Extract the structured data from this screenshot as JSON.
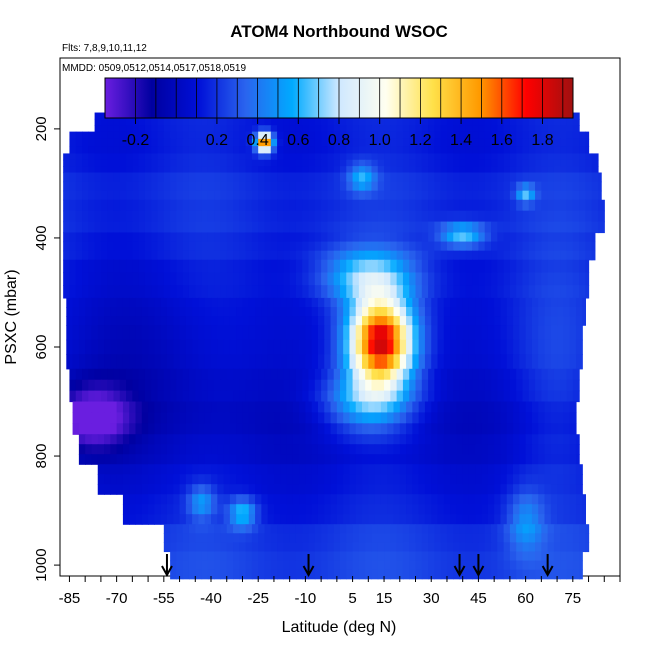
{
  "chart_data": {
    "type": "heatmap",
    "title": "ATOM4 Northbound WSOC",
    "annotations": {
      "flights": "Flts: 7,8,9,10,11,12",
      "dates": "MMDD: 0509,0512,0514,0517,0518,0519"
    },
    "xlabel": "Latitude (deg N)",
    "ylabel": "PSXC (mbar)",
    "xlim": [
      -88,
      90
    ],
    "ylim": [
      1020,
      70
    ],
    "x_tick_labels": [
      "-85",
      "-70",
      "-55",
      "-40",
      "-25",
      "-10",
      "5",
      "15",
      "30",
      "45",
      "60",
      "75"
    ],
    "x_tick_values": [
      -85,
      -70,
      -55,
      -40,
      -25,
      -10,
      5,
      15,
      30,
      45,
      60,
      75
    ],
    "y_tick_labels": [
      "200",
      "400",
      "600",
      "800",
      "1000"
    ],
    "y_tick_values": [
      200,
      400,
      600,
      800,
      1000
    ],
    "colorbar": {
      "range": [
        -0.35,
        1.95
      ],
      "tick_labels": [
        "-0.2",
        "0.2",
        "0.4",
        "0.6",
        "0.8",
        "1.0",
        "1.2",
        "1.4",
        "1.6",
        "1.8"
      ],
      "tick_values": [
        -0.2,
        0.2,
        0.4,
        0.6,
        0.8,
        1.0,
        1.2,
        1.4,
        1.6,
        1.8
      ],
      "colors": [
        "#6a1ee0",
        "#0000a0",
        "#0010d8",
        "#2a64ee",
        "#00aaff",
        "#cfe8ff",
        "#fffff0",
        "#ffe14a",
        "#ff9a00",
        "#ff0000",
        "#a01010"
      ]
    },
    "profile_markers_lat": [
      -54,
      -9,
      39,
      45,
      67
    ],
    "profiles": [
      {
        "p": [
          170,
          205
        ],
        "lat": [
          -77,
          77
        ],
        "base": 0.16
      },
      {
        "p": [
          205,
          245
        ],
        "lat": [
          -85,
          80
        ],
        "base": 0.16
      },
      {
        "p": [
          245,
          280
        ],
        "lat": [
          -87,
          83
        ],
        "base": 0.18
      },
      {
        "p": [
          280,
          330
        ],
        "lat": [
          -87,
          84
        ],
        "base": 0.22
      },
      {
        "p": [
          330,
          390
        ],
        "lat": [
          -87,
          85
        ],
        "base": 0.2
      },
      {
        "p": [
          390,
          440
        ],
        "lat": [
          -87,
          82
        ],
        "base": 0.16
      },
      {
        "p": [
          440,
          510
        ],
        "lat": [
          -87,
          80
        ],
        "base": 0.12
      },
      {
        "p": [
          510,
          560
        ],
        "lat": [
          -86,
          79
        ],
        "base": 0.1
      },
      {
        "p": [
          560,
          640
        ],
        "lat": [
          -86,
          78
        ],
        "base": 0.1
      },
      {
        "p": [
          640,
          700
        ],
        "lat": [
          -85,
          77
        ],
        "base": 0.08
      },
      {
        "p": [
          700,
          760
        ],
        "lat": [
          -84,
          76
        ],
        "base": 0.05
      },
      {
        "p": [
          760,
          815
        ],
        "lat": [
          -82,
          77
        ],
        "base": 0.08
      },
      {
        "p": [
          815,
          870
        ],
        "lat": [
          -76,
          78
        ],
        "base": 0.12
      },
      {
        "p": [
          870,
          925
        ],
        "lat": [
          -68,
          79
        ],
        "base": 0.14
      },
      {
        "p": [
          925,
          975
        ],
        "lat": [
          -55,
          80
        ],
        "base": 0.2
      },
      {
        "p": [
          975,
          1025
        ],
        "lat": [
          -53,
          78
        ],
        "base": 0.22
      }
    ],
    "features": [
      {
        "lat": 14,
        "p": 590,
        "sx": 7,
        "sy": 55,
        "amp": 1.7
      },
      {
        "lat": 10,
        "p": 470,
        "sx": 10,
        "sy": 35,
        "amp": 0.55
      },
      {
        "lat": 10,
        "p": 700,
        "sx": 10,
        "sy": 40,
        "amp": 0.55
      },
      {
        "lat": -23,
        "p": 225,
        "sx": 1.8,
        "sy": 12,
        "amp": 1.6
      },
      {
        "lat": -78,
        "p": 730,
        "sx": 8,
        "sy": 40,
        "amp": -0.45
      },
      {
        "lat": -60,
        "p": 620,
        "sx": 18,
        "sy": 120,
        "amp": -0.12
      },
      {
        "lat": 40,
        "p": 395,
        "sx": 5,
        "sy": 15,
        "amp": 0.55
      },
      {
        "lat": 60,
        "p": 320,
        "sx": 2,
        "sy": 12,
        "amp": 0.45
      },
      {
        "lat": -30,
        "p": 905,
        "sx": 3,
        "sy": 18,
        "amp": 0.5
      },
      {
        "lat": -43,
        "p": 885,
        "sx": 3,
        "sy": 22,
        "amp": 0.35
      },
      {
        "lat": 8,
        "p": 290,
        "sx": 3,
        "sy": 18,
        "amp": 0.4
      },
      {
        "lat": 60,
        "p": 920,
        "sx": 4,
        "sy": 40,
        "amp": 0.3
      },
      {
        "lat": 70,
        "p": 650,
        "sx": 10,
        "sy": 150,
        "amp": 0.12
      }
    ]
  }
}
